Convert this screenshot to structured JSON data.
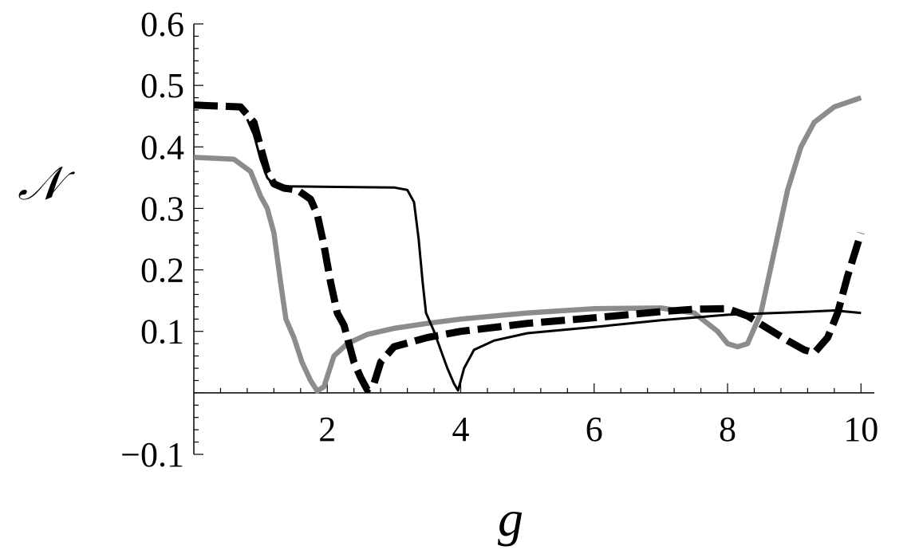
{
  "chart_data": {
    "type": "line",
    "title": "",
    "xlabel": "g",
    "ylabel": "𝒩",
    "xlim": [
      0,
      10.2
    ],
    "ylim": [
      -0.1,
      0.6
    ],
    "x_ticks": [
      2,
      4,
      6,
      8,
      10
    ],
    "y_ticks": [
      -0.1,
      0.1,
      0.2,
      0.3,
      0.4,
      0.5,
      0.6
    ],
    "grid": false,
    "legend": "none",
    "series": [
      {
        "style": "solid-gray-thick",
        "color": "#8c8c8c",
        "x": [
          0,
          0.6,
          0.85,
          1.0,
          1.1,
          1.2,
          1.3,
          1.38,
          1.5,
          1.62,
          1.75,
          1.85,
          1.95,
          2.1,
          2.3,
          2.6,
          3.0,
          3.5,
          4.0,
          5.0,
          6.0,
          7.0,
          7.5,
          7.85,
          8.0,
          8.15,
          8.3,
          8.5,
          8.7,
          8.9,
          9.1,
          9.3,
          9.6,
          10.0
        ],
        "y": [
          0.383,
          0.38,
          0.36,
          0.32,
          0.3,
          0.26,
          0.18,
          0.12,
          0.09,
          0.05,
          0.02,
          0.003,
          0.01,
          0.06,
          0.08,
          0.095,
          0.105,
          0.113,
          0.12,
          0.13,
          0.137,
          0.138,
          0.13,
          0.1,
          0.08,
          0.075,
          0.08,
          0.13,
          0.23,
          0.33,
          0.4,
          0.44,
          0.465,
          0.48
        ]
      },
      {
        "style": "dashed-black-thick",
        "color": "#000000",
        "x": [
          0,
          0.7,
          0.9,
          1.0,
          1.1,
          1.2,
          1.35,
          1.55,
          1.75,
          1.85,
          1.95,
          2.05,
          2.15,
          2.25,
          2.4,
          2.5,
          2.6,
          2.7,
          2.8,
          3.0,
          3.5,
          4.0,
          5.0,
          6.0,
          7.0,
          7.5,
          8.0,
          8.3,
          8.6,
          8.9,
          9.15,
          9.3,
          9.5,
          9.65,
          9.8,
          10.0
        ],
        "y": [
          0.468,
          0.465,
          0.44,
          0.4,
          0.36,
          0.34,
          0.333,
          0.33,
          0.315,
          0.29,
          0.24,
          0.18,
          0.13,
          0.11,
          0.05,
          0.025,
          0.005,
          0.015,
          0.05,
          0.075,
          0.09,
          0.1,
          0.113,
          0.122,
          0.132,
          0.136,
          0.137,
          0.125,
          0.105,
          0.085,
          0.07,
          0.065,
          0.09,
          0.13,
          0.19,
          0.26
        ]
      },
      {
        "style": "solid-black-thin",
        "color": "#000000",
        "x": [
          0.8,
          0.9,
          1.0,
          1.1,
          1.2,
          1.35,
          2.0,
          3.0,
          3.2,
          3.3,
          3.37,
          3.43,
          3.48,
          3.52,
          3.6,
          3.7,
          3.8,
          3.9,
          3.96,
          4.05,
          4.2,
          4.5,
          5.0,
          6.0,
          7.0,
          8.0,
          9.0,
          9.6,
          10.0
        ],
        "y": [
          0.445,
          0.42,
          0.38,
          0.35,
          0.338,
          0.336,
          0.335,
          0.334,
          0.33,
          0.31,
          0.25,
          0.18,
          0.13,
          0.12,
          0.1,
          0.07,
          0.04,
          0.015,
          0.004,
          0.04,
          0.07,
          0.085,
          0.097,
          0.107,
          0.118,
          0.127,
          0.131,
          0.134,
          0.13
        ]
      }
    ]
  }
}
